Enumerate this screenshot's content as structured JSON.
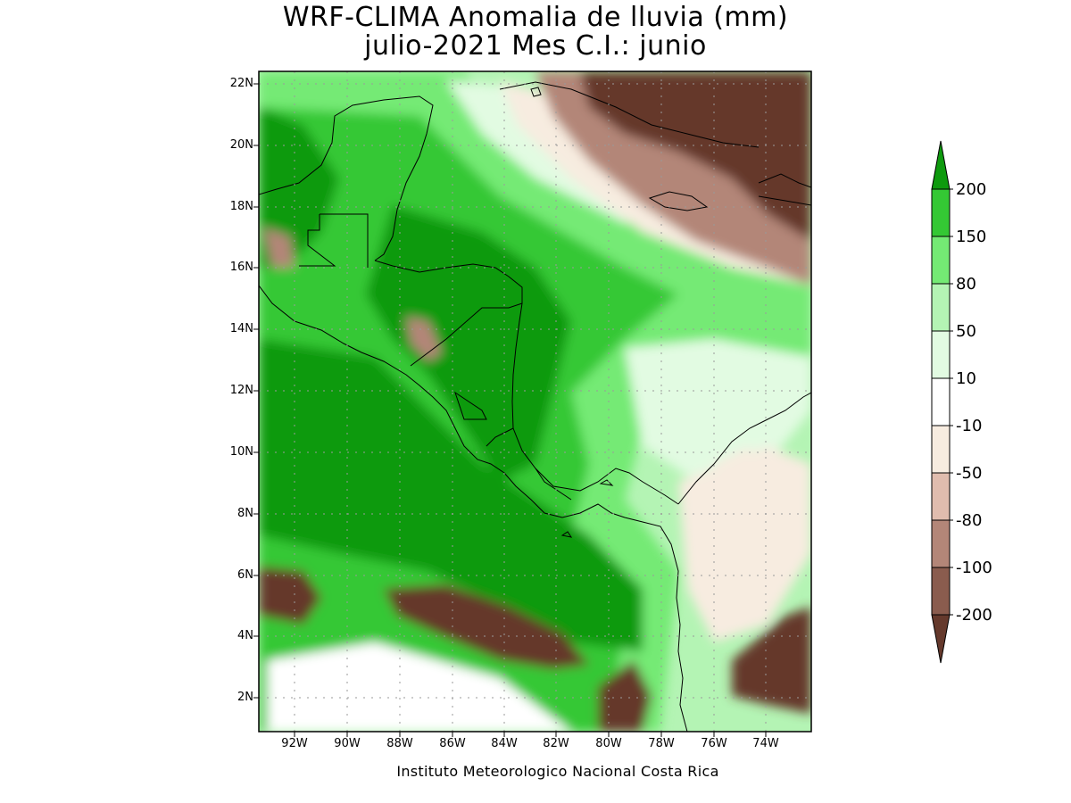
{
  "title_line1": "WRF-CLIMA Anomalia de lluvia (mm)",
  "title_line2": "julio-2021 Mes C.I.: junio",
  "footer": "Instituto Meteorologico Nacional Costa Rica",
  "y_ticks": [
    "22N",
    "20N",
    "18N",
    "16N",
    "14N",
    "12N",
    "10N",
    "8N",
    "6N",
    "4N",
    "2N"
  ],
  "x_ticks": [
    "92W",
    "90W",
    "88W",
    "86W",
    "84W",
    "82W",
    "80W",
    "78W",
    "76W",
    "74W"
  ],
  "colorbar": {
    "labels": [
      "200",
      "150",
      "80",
      "50",
      "10",
      "-10",
      "-50",
      "-80",
      "-100",
      "-200"
    ],
    "colors": [
      "#0e9a0e",
      "#34c834",
      "#74ea74",
      "#b4f4b4",
      "#e2fbe2",
      "#ffffff",
      "#f7ece0",
      "#e0bcae",
      "#b38678",
      "#8a5c4e",
      "#65392c"
    ]
  },
  "map_colors": {
    "ocean_background": "#b4f4b4",
    "strong_wet": "#0e9a0e",
    "wet": "#34c834",
    "moderate_wet": "#74ea74",
    "light_wet": "#e2fbe2",
    "neutral": "#ffffff",
    "slight_dry": "#f7ece0",
    "dry": "#b38678",
    "very_dry": "#65392c"
  }
}
